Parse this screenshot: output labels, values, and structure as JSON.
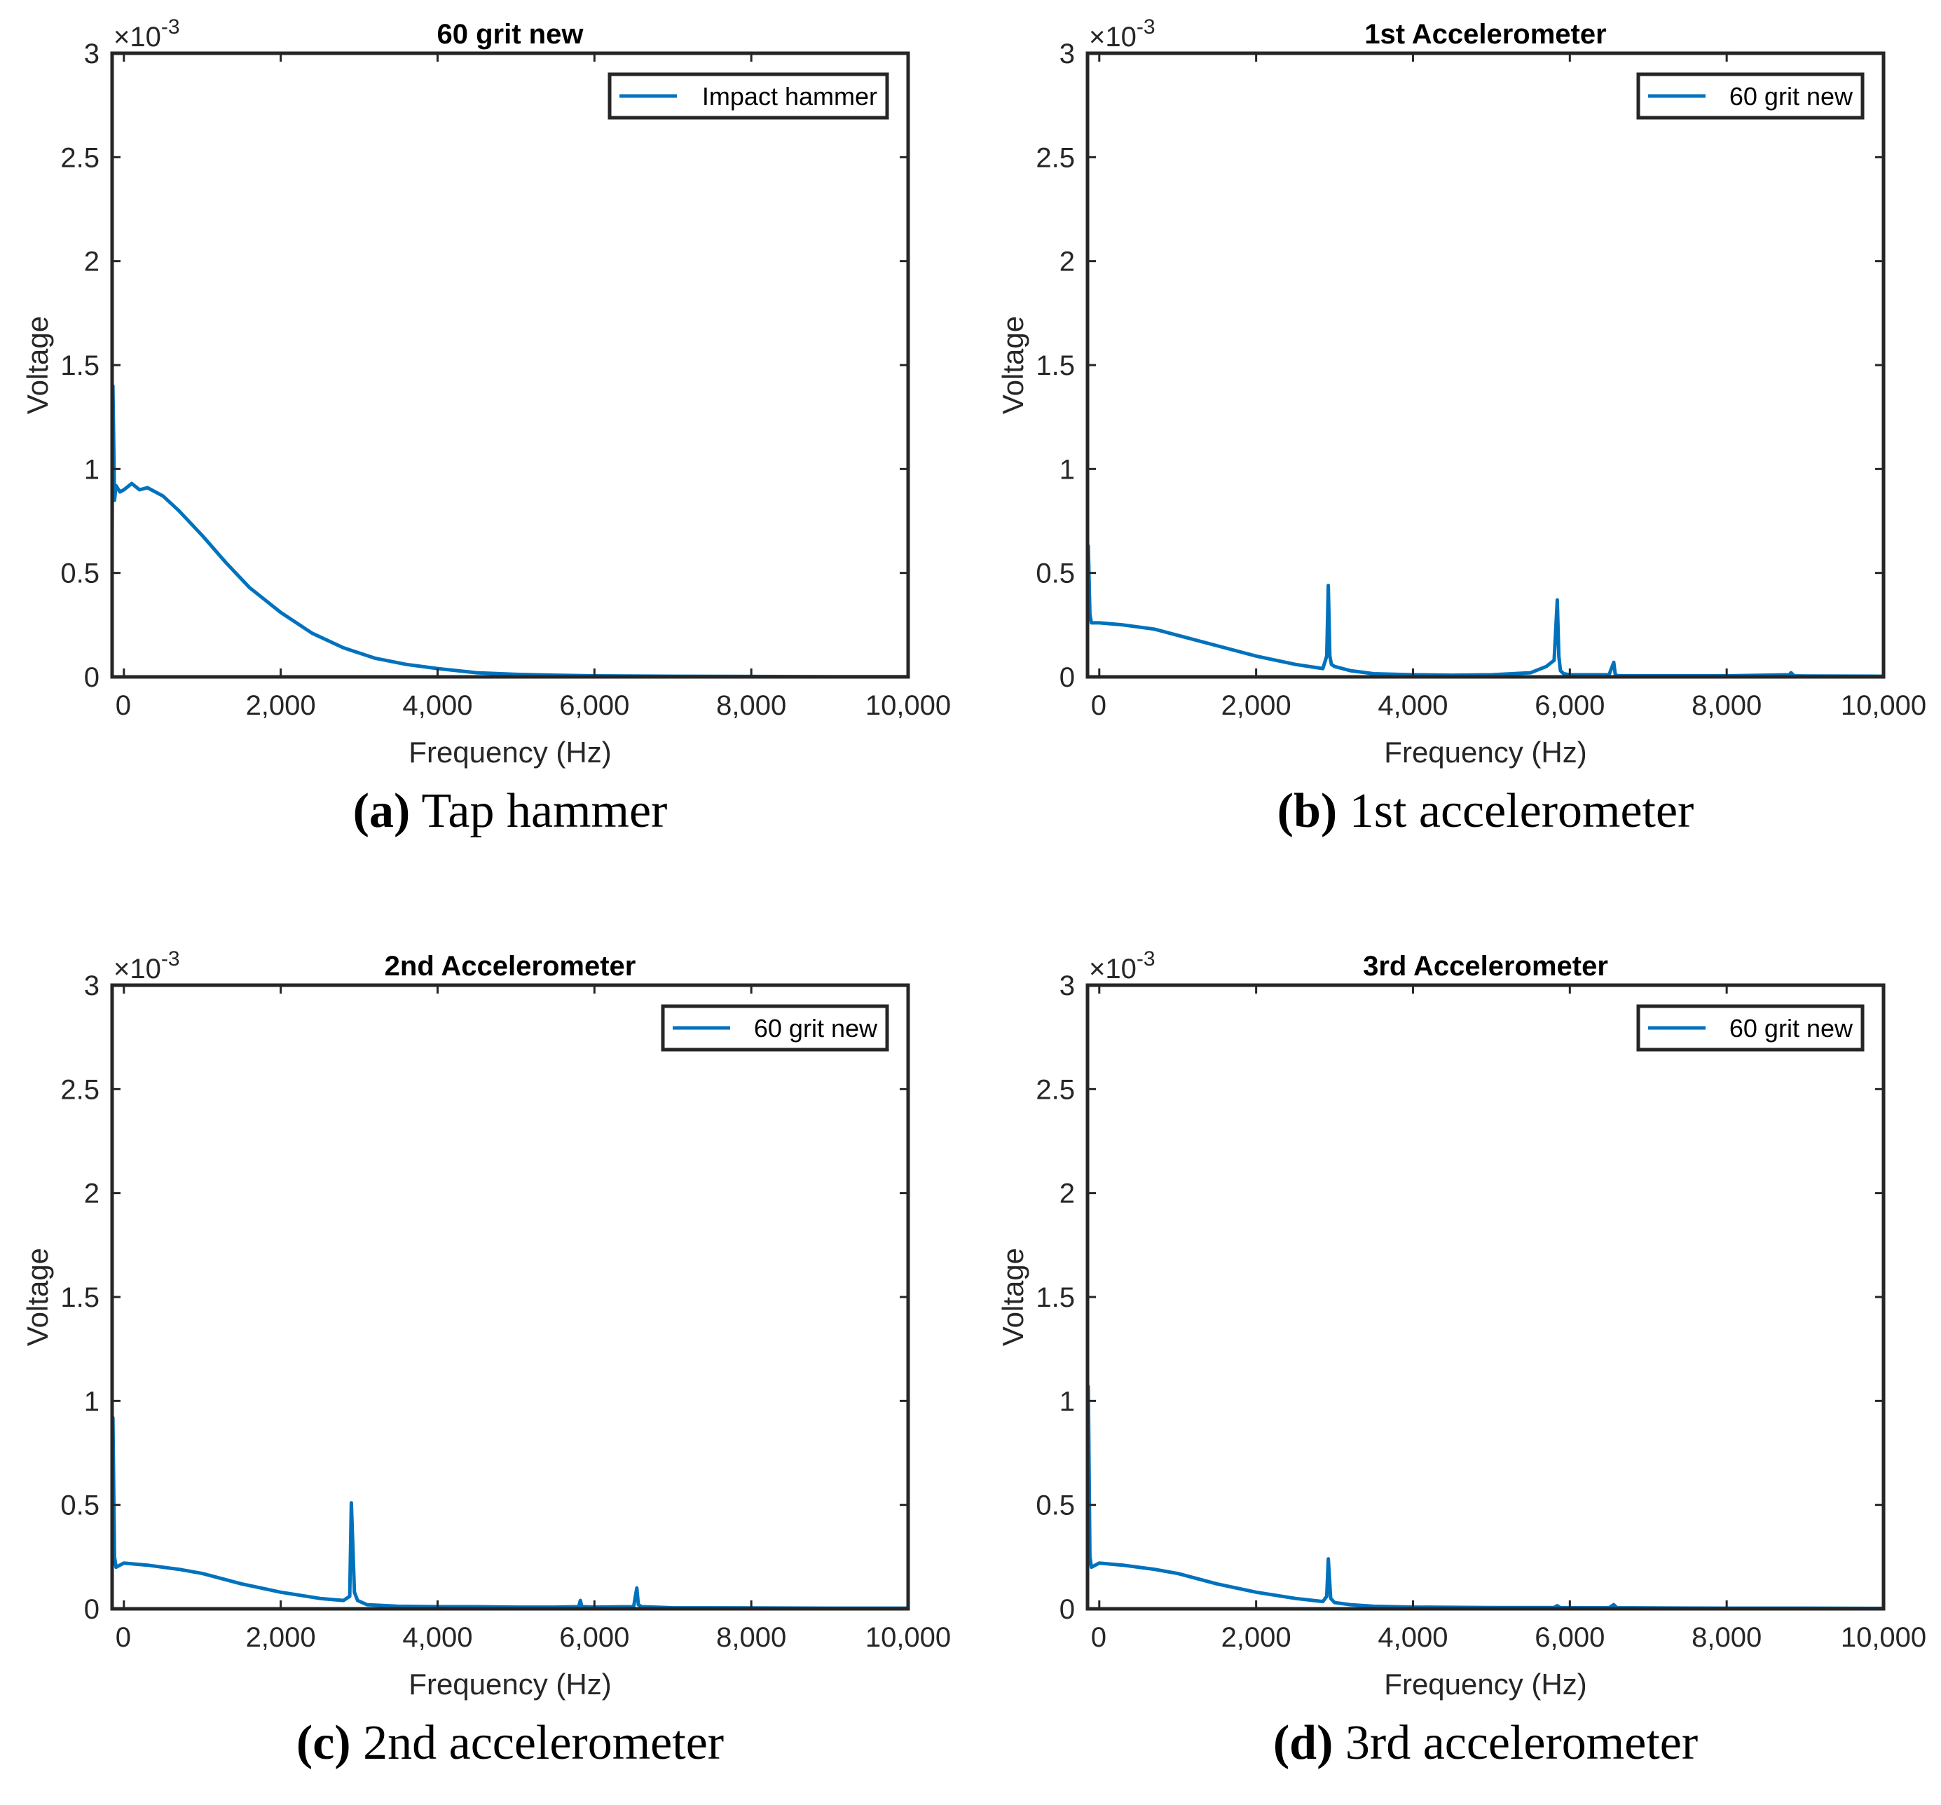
{
  "figure": {
    "panels": [
      {
        "id": "a",
        "caption_label": "(a)",
        "caption_text": "Tap hammer",
        "chart_data": {
          "type": "line",
          "title": "60 grit new",
          "xlabel": "Frequency (Hz)",
          "ylabel": "Voltage",
          "xlim": [
            -150,
            10000
          ],
          "ylim": [
            0,
            3
          ],
          "y_exponent_label": "×10",
          "y_exponent": "-3",
          "xticks": [
            0,
            2000,
            4000,
            6000,
            8000,
            10000
          ],
          "xtick_labels": [
            "0",
            "2,000",
            "4,000",
            "6,000",
            "8,000",
            "10,000"
          ],
          "yticks": [
            0,
            0.5,
            1,
            1.5,
            2,
            2.5,
            3
          ],
          "ytick_labels": [
            "0",
            "0.5",
            "1",
            "1.5",
            "2",
            "2.5",
            "3"
          ],
          "legend": {
            "entries": [
              "Impact hammer"
            ],
            "location": "top-right"
          },
          "series": [
            {
              "name": "Impact hammer",
              "color": "#0072BD",
              "x": [
                -150,
                -140,
                -120,
                -100,
                -50,
                0,
                100,
                200,
                300,
                500,
                700,
                1000,
                1300,
                1600,
                2000,
                2400,
                2800,
                3200,
                3600,
                4000,
                4500,
                5000,
                5500,
                6000,
                7000,
                8000,
                9000,
                10000
              ],
              "y": [
                0.65,
                1.4,
                0.85,
                0.92,
                0.89,
                0.9,
                0.93,
                0.9,
                0.91,
                0.87,
                0.8,
                0.68,
                0.55,
                0.43,
                0.31,
                0.21,
                0.14,
                0.09,
                0.06,
                0.04,
                0.02,
                0.012,
                0.008,
                0.005,
                0.003,
                0.002,
                0.001,
                0.001
              ]
            }
          ]
        }
      },
      {
        "id": "b",
        "caption_label": "(b)",
        "caption_text": "1st accelerometer",
        "chart_data": {
          "type": "line",
          "title": "1st Accelerometer",
          "xlabel": "Frequency (Hz)",
          "ylabel": "Voltage",
          "xlim": [
            -150,
            10000
          ],
          "ylim": [
            0,
            3
          ],
          "y_exponent_label": "×10",
          "y_exponent": "-3",
          "xticks": [
            0,
            2000,
            4000,
            6000,
            8000,
            10000
          ],
          "xtick_labels": [
            "0",
            "2,000",
            "4,000",
            "6,000",
            "8,000",
            "10,000"
          ],
          "yticks": [
            0,
            0.5,
            1,
            1.5,
            2,
            2.5,
            3
          ],
          "ytick_labels": [
            "0",
            "0.5",
            "1",
            "1.5",
            "2",
            "2.5",
            "3"
          ],
          "legend": {
            "entries": [
              "60 grit new"
            ],
            "location": "top-right"
          },
          "series": [
            {
              "name": "60 grit new",
              "color": "#0072BD",
              "x": [
                -150,
                -140,
                -120,
                -100,
                0,
                300,
                700,
                1000,
                1500,
                2000,
                2500,
                2850,
                2900,
                2920,
                2940,
                2960,
                3000,
                3200,
                3500,
                4000,
                4500,
                5000,
                5500,
                5700,
                5800,
                5840,
                5860,
                5880,
                5920,
                6000,
                6500,
                6560,
                6580,
                6620,
                7000,
                8000,
                8800,
                8820,
                8860,
                9000,
                10000
              ],
              "y": [
                0.5,
                0.63,
                0.3,
                0.26,
                0.26,
                0.25,
                0.23,
                0.2,
                0.15,
                0.1,
                0.06,
                0.04,
                0.1,
                0.44,
                0.1,
                0.06,
                0.05,
                0.03,
                0.015,
                0.01,
                0.008,
                0.01,
                0.02,
                0.05,
                0.08,
                0.37,
                0.1,
                0.03,
                0.015,
                0.01,
                0.01,
                0.07,
                0.01,
                0.005,
                0.005,
                0.005,
                0.01,
                0.02,
                0.005,
                0.004,
                0.003
              ]
            }
          ]
        }
      },
      {
        "id": "c",
        "caption_label": "(c)",
        "caption_text": "2nd accelerometer",
        "chart_data": {
          "type": "line",
          "title": "2nd Accelerometer",
          "xlabel": "Frequency (Hz)",
          "ylabel": "Voltage",
          "xlim": [
            -150,
            10000
          ],
          "ylim": [
            0,
            3
          ],
          "y_exponent_label": "×10",
          "y_exponent": "-3",
          "xticks": [
            0,
            2000,
            4000,
            6000,
            8000,
            10000
          ],
          "xtick_labels": [
            "0",
            "2,000",
            "4,000",
            "6,000",
            "8,000",
            "10,000"
          ],
          "yticks": [
            0,
            0.5,
            1,
            1.5,
            2,
            2.5,
            3
          ],
          "ytick_labels": [
            "0",
            "0.5",
            "1",
            "1.5",
            "2",
            "2.5",
            "3"
          ],
          "legend": {
            "entries": [
              "60 grit new"
            ],
            "location": "top-right"
          },
          "series": [
            {
              "name": "60 grit new",
              "color": "#0072BD",
              "x": [
                -150,
                -140,
                -120,
                -100,
                0,
                300,
                700,
                1000,
                1500,
                2000,
                2500,
                2800,
                2880,
                2900,
                2940,
                2980,
                3100,
                3500,
                4000,
                4500,
                5000,
                5500,
                5800,
                5820,
                5840,
                6000,
                6500,
                6540,
                6560,
                6600,
                7000,
                8000,
                9000,
                10000
              ],
              "y": [
                0.3,
                0.92,
                0.25,
                0.2,
                0.22,
                0.21,
                0.19,
                0.17,
                0.12,
                0.08,
                0.05,
                0.04,
                0.06,
                0.51,
                0.08,
                0.04,
                0.02,
                0.012,
                0.01,
                0.01,
                0.008,
                0.008,
                0.01,
                0.04,
                0.01,
                0.008,
                0.01,
                0.1,
                0.02,
                0.01,
                0.005,
                0.004,
                0.003,
                0.003
              ]
            }
          ]
        }
      },
      {
        "id": "d",
        "caption_label": "(d)",
        "caption_text": "3rd accelerometer",
        "chart_data": {
          "type": "line",
          "title": "3rd Accelerometer",
          "xlabel": "Frequency (Hz)",
          "ylabel": "Voltage",
          "xlim": [
            -150,
            10000
          ],
          "ylim": [
            0,
            3
          ],
          "y_exponent_label": "×10",
          "y_exponent": "-3",
          "xticks": [
            0,
            2000,
            4000,
            6000,
            8000,
            10000
          ],
          "xtick_labels": [
            "0",
            "2,000",
            "4,000",
            "6,000",
            "8,000",
            "10,000"
          ],
          "yticks": [
            0,
            0.5,
            1,
            1.5,
            2,
            2.5,
            3
          ],
          "ytick_labels": [
            "0",
            "0.5",
            "1",
            "1.5",
            "2",
            "2.5",
            "3"
          ],
          "legend": {
            "entries": [
              "60 grit new"
            ],
            "location": "top-right"
          },
          "series": [
            {
              "name": "60 grit new",
              "color": "#0072BD",
              "x": [
                -150,
                -140,
                -120,
                -100,
                0,
                300,
                700,
                1000,
                1500,
                2000,
                2500,
                2850,
                2900,
                2920,
                2950,
                3000,
                3200,
                3500,
                4000,
                5000,
                5800,
                5840,
                5880,
                6000,
                6500,
                6560,
                6600,
                7000,
                8000,
                9000,
                10000
              ],
              "y": [
                0.35,
                1.07,
                0.25,
                0.2,
                0.22,
                0.21,
                0.19,
                0.17,
                0.12,
                0.08,
                0.05,
                0.035,
                0.06,
                0.24,
                0.05,
                0.03,
                0.02,
                0.012,
                0.008,
                0.006,
                0.006,
                0.015,
                0.005,
                0.005,
                0.005,
                0.02,
                0.005,
                0.004,
                0.003,
                0.003,
                0.002
              ]
            }
          ]
        }
      }
    ]
  }
}
